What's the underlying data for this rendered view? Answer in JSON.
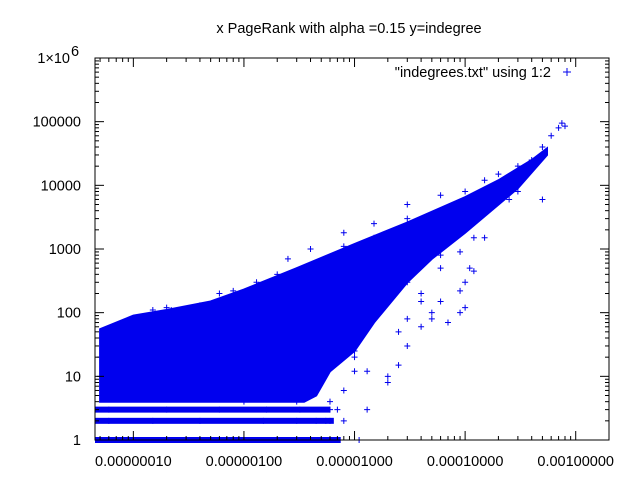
{
  "chart_data": {
    "type": "scatter",
    "title": "x PageRank with alpha =0.15 y=indegree",
    "xlabel": "",
    "ylabel": "",
    "x_scale": "log",
    "y_scale": "log",
    "xlim": [
      4.5e-08,
      0.002
    ],
    "ylim": [
      1,
      1000000
    ],
    "x_ticks": [
      {
        "value": 1e-07,
        "label": "0.00000010"
      },
      {
        "value": 1e-06,
        "label": "0.00000100"
      },
      {
        "value": 1e-05,
        "label": "0.00001000"
      },
      {
        "value": 0.0001,
        "label": "0.00010000"
      },
      {
        "value": 0.001,
        "label": "0.00100000"
      }
    ],
    "y_ticks": [
      {
        "value": 1,
        "label": "1"
      },
      {
        "value": 10,
        "label": "10"
      },
      {
        "value": 100,
        "label": "100"
      },
      {
        "value": 1000,
        "label": "1000"
      },
      {
        "value": 10000,
        "label": "10000"
      },
      {
        "value": 100000,
        "label": "100000"
      },
      {
        "value": 1000000,
        "label": "1×10",
        "sup": "6"
      }
    ],
    "grid": false,
    "legend_position": "top-right",
    "color": "#0000ee",
    "series": [
      {
        "name": "\"indegrees.txt\" using 1:2",
        "marker": "+",
        "points": [
          [
            6e-08,
            1
          ],
          [
            1e-07,
            1
          ],
          [
            3e-07,
            1
          ],
          [
            1.2e-06,
            1
          ],
          [
            2.4e-06,
            1
          ],
          [
            5e-06,
            1
          ],
          [
            7e-06,
            1
          ],
          [
            6e-08,
            2
          ],
          [
            1.5e-07,
            2
          ],
          [
            4e-07,
            2
          ],
          [
            1.5e-06,
            2
          ],
          [
            3e-06,
            2
          ],
          [
            5.5e-06,
            2
          ],
          [
            6e-08,
            3
          ],
          [
            2e-07,
            3
          ],
          [
            6e-07,
            3
          ],
          [
            1.6e-06,
            3
          ],
          [
            3.2e-06,
            3
          ],
          [
            6e-06,
            3
          ],
          [
            5e-08,
            5
          ],
          [
            1e-07,
            6
          ],
          [
            3e-07,
            5
          ],
          [
            1e-06,
            4
          ],
          [
            3e-06,
            4
          ],
          [
            6e-06,
            4
          ],
          [
            5e-08,
            10
          ],
          [
            1e-07,
            12
          ],
          [
            4e-07,
            9
          ],
          [
            1.5e-06,
            8
          ],
          [
            3e-06,
            7
          ],
          [
            8e-06,
            6
          ],
          [
            5e-08,
            20
          ],
          [
            1e-07,
            25
          ],
          [
            3e-07,
            22
          ],
          [
            1e-06,
            18
          ],
          [
            3e-06,
            15
          ],
          [
            1e-05,
            12
          ],
          [
            5e-08,
            40
          ],
          [
            1.2e-07,
            60
          ],
          [
            3e-07,
            70
          ],
          [
            1e-06,
            40
          ],
          [
            3e-06,
            30
          ],
          [
            1e-05,
            25
          ],
          [
            1.5e-07,
            110
          ],
          [
            2e-07,
            120
          ],
          [
            4e-07,
            130
          ],
          [
            1e-06,
            90
          ],
          [
            3e-06,
            70
          ],
          [
            1e-05,
            60
          ],
          [
            6e-07,
            200
          ],
          [
            8e-07,
            220
          ],
          [
            1e-06,
            180
          ],
          [
            2e-06,
            200
          ],
          [
            5e-06,
            150
          ],
          [
            1.5e-05,
            120
          ],
          [
            1.3e-06,
            300
          ],
          [
            2e-06,
            400
          ],
          [
            4e-06,
            500
          ],
          [
            8e-06,
            600
          ],
          [
            1.5e-05,
            500
          ],
          [
            3e-05,
            300
          ],
          [
            2.5e-06,
            700
          ],
          [
            4e-06,
            1000
          ],
          [
            8e-06,
            1100
          ],
          [
            1.5e-05,
            1500
          ],
          [
            3e-05,
            1200
          ],
          [
            6e-05,
            800
          ],
          [
            8e-06,
            1800
          ],
          [
            1.5e-05,
            2500
          ],
          [
            3e-05,
            3000
          ],
          [
            6e-05,
            3500
          ],
          [
            0.0001,
            2500
          ],
          [
            0.00015,
            1500
          ],
          [
            3e-05,
            5000
          ],
          [
            6e-05,
            7000
          ],
          [
            0.0001,
            8000
          ],
          [
            0.0002,
            10000
          ],
          [
            0.0003,
            8000
          ],
          [
            0.0005,
            6000
          ],
          [
            0.00015,
            12000
          ],
          [
            0.0002,
            15000
          ],
          [
            0.0003,
            20000
          ],
          [
            0.0004,
            25000
          ],
          [
            0.0005,
            30000
          ],
          [
            0.0005,
            40000
          ],
          [
            0.0006,
            60000
          ],
          [
            0.0007,
            80000
          ],
          [
            0.0008,
            85000
          ],
          [
            0.00075,
            95000
          ],
          [
            1.2e-06,
            60
          ],
          [
            2e-06,
            40
          ],
          [
            6e-06,
            30
          ],
          [
            1e-05,
            20
          ],
          [
            1.3e-05,
            12
          ],
          [
            2e-05,
            10
          ],
          [
            4.5e-06,
            2
          ],
          [
            6e-06,
            2
          ],
          [
            8e-06,
            2
          ],
          [
            1.1e-05,
            1
          ],
          [
            7e-06,
            3
          ],
          [
            1.3e-05,
            3
          ],
          [
            2e-05,
            8
          ],
          [
            2.5e-05,
            15
          ],
          [
            3e-05,
            30
          ],
          [
            4e-05,
            60
          ],
          [
            5e-05,
            100
          ],
          [
            6e-05,
            150
          ],
          [
            2.5e-05,
            50
          ],
          [
            3e-05,
            80
          ],
          [
            4e-05,
            200
          ],
          [
            6e-05,
            500
          ],
          [
            9e-05,
            900
          ],
          [
            0.00012,
            1500
          ],
          [
            2e-05,
            1000
          ],
          [
            1.5e-05,
            800
          ],
          [
            4e-05,
            2500
          ],
          [
            8e-05,
            5000
          ],
          [
            0.00012,
            4000
          ],
          [
            0.00025,
            6000
          ],
          [
            4e-05,
            150
          ],
          [
            5e-05,
            80
          ],
          [
            7e-05,
            70
          ],
          [
            0.0001,
            120
          ],
          [
            9e-05,
            220
          ],
          [
            0.00011,
            500
          ],
          [
            0.0001,
            300
          ],
          [
            0.00012,
            450
          ],
          [
            9e-05,
            100
          ],
          [
            2.2e-07,
            110
          ],
          [
            1.5e-06,
            90
          ],
          [
            4e-06,
            100
          ],
          [
            7e-06,
            220
          ],
          [
            1.8e-06,
            110
          ],
          [
            3.5e-06,
            300
          ],
          [
            2.8e-06,
            240
          ],
          [
            5e-06,
            180
          ],
          [
            1.2e-05,
            90
          ]
        ]
      }
    ]
  }
}
